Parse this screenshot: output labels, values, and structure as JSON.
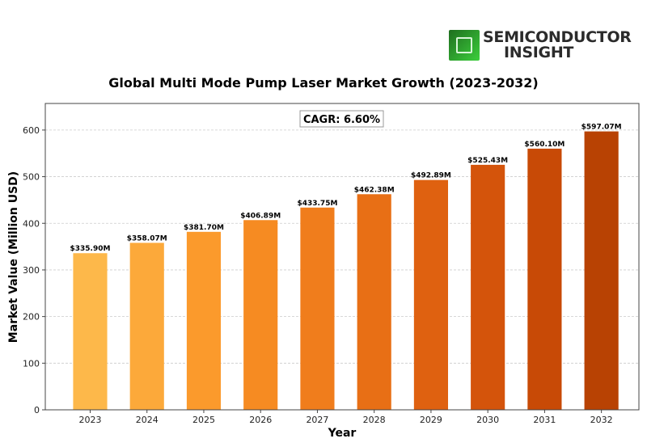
{
  "brand": {
    "logo_icon": "microchip-icon",
    "line1": "SEMICONDUCTOR",
    "line2": "INSIGHT"
  },
  "chart_data": {
    "type": "bar",
    "title": "Global Multi Mode Pump Laser Market Growth (2023-2032)",
    "xlabel": "Year",
    "ylabel": "Market Value (Million USD)",
    "categories": [
      "2023",
      "2024",
      "2025",
      "2026",
      "2027",
      "2028",
      "2029",
      "2030",
      "2031",
      "2032"
    ],
    "values": [
      335.9,
      358.07,
      381.7,
      406.89,
      433.75,
      462.38,
      492.89,
      525.43,
      560.1,
      597.07
    ],
    "data_labels": [
      "$335.90M",
      "$358.07M",
      "$381.70M",
      "$406.89M",
      "$433.75M",
      "$462.38M",
      "$492.89M",
      "$525.43M",
      "$560.10M",
      "$597.07M"
    ],
    "colors": [
      "#fdb84a",
      "#fca93a",
      "#fb9a2c",
      "#f68b22",
      "#f07d1c",
      "#e86f15",
      "#df6110",
      "#d4540b",
      "#c84a06",
      "#b84203"
    ],
    "ylim": [
      0,
      657
    ],
    "yticks": [
      0,
      100,
      200,
      300,
      400,
      500,
      600
    ],
    "grid": true,
    "grid_axis": "y",
    "annotation": "CAGR: 6.60%",
    "annotation_position": "top-center",
    "legend": "none"
  }
}
